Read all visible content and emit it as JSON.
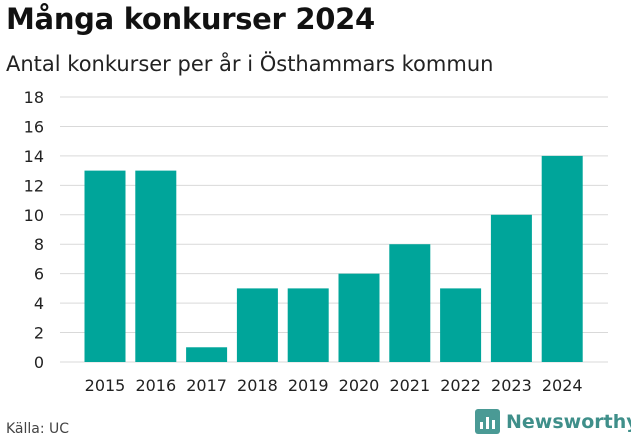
{
  "header": {
    "title": "Många konkurser 2024",
    "subtitle": "Antal konkurser per år i Östhammars kommun"
  },
  "footer": {
    "source": "Källa: UC",
    "brand": "Newsworthy"
  },
  "colors": {
    "bar": "#00a59a",
    "grid": "#d9d9d9",
    "brand": "#3f8f8a"
  },
  "chart_data": {
    "type": "bar",
    "categories": [
      "2015",
      "2016",
      "2017",
      "2018",
      "2019",
      "2020",
      "2021",
      "2022",
      "2023",
      "2024"
    ],
    "values": [
      13,
      13,
      1,
      5,
      5,
      6,
      8,
      5,
      10,
      14
    ],
    "title": "Många konkurser 2024",
    "subtitle": "Antal konkurser per år i Östhammars kommun",
    "xlabel": "",
    "ylabel": "",
    "ylim": [
      0,
      18
    ],
    "yticks": [
      0,
      2,
      4,
      6,
      8,
      10,
      12,
      14,
      16,
      18
    ],
    "grid": true,
    "legend": "none"
  }
}
